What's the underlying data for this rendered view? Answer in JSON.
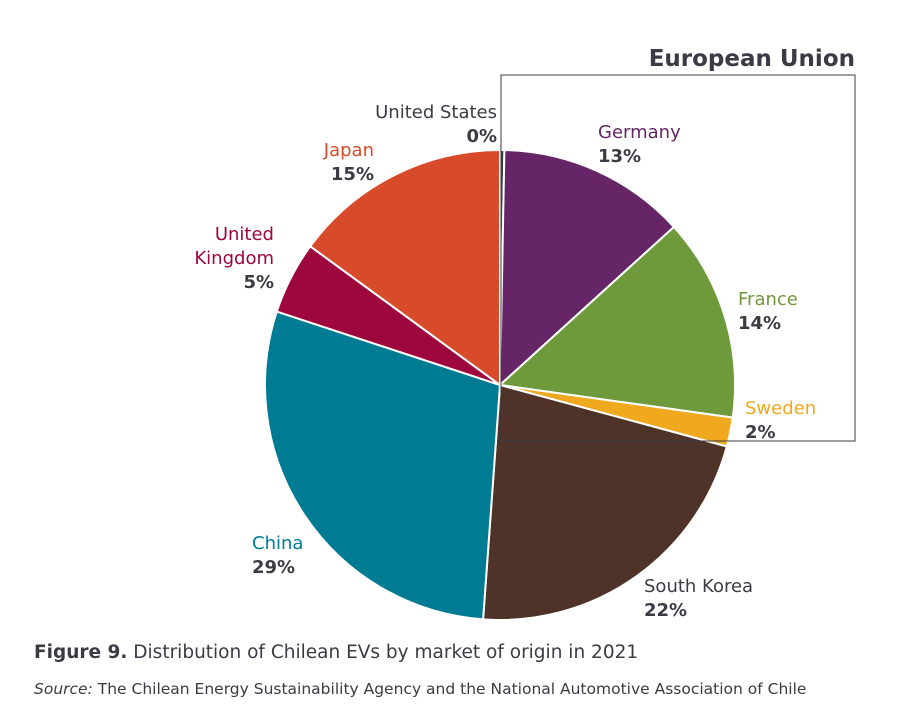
{
  "chart_data": {
    "type": "pie",
    "slices": [
      {
        "name": "United States",
        "label_lines": [
          "United States"
        ],
        "value": 0.3,
        "pct_label": "0%",
        "color": "#3b3b45",
        "label_color": "#3b3b45"
      },
      {
        "name": "Germany",
        "label_lines": [
          "Germany"
        ],
        "value": 13,
        "pct_label": "13%",
        "color": "#662566",
        "label_color": "#662566"
      },
      {
        "name": "France",
        "label_lines": [
          "France"
        ],
        "value": 14,
        "pct_label": "14%",
        "color": "#6e9a3c",
        "label_color": "#6e9a3c"
      },
      {
        "name": "Sweden",
        "label_lines": [
          "Sweden"
        ],
        "value": 2,
        "pct_label": "2%",
        "color": "#f0a91e",
        "label_color": "#f0a91e"
      },
      {
        "name": "South Korea",
        "label_lines": [
          "South Korea"
        ],
        "value": 22,
        "pct_label": "22%",
        "color": "#4f3328",
        "label_color": "#3b3b45"
      },
      {
        "name": "China",
        "label_lines": [
          "China"
        ],
        "value": 29,
        "pct_label": "29%",
        "color": "#007b94",
        "label_color": "#007b94"
      },
      {
        "name": "United Kingdom",
        "label_lines": [
          "United",
          "Kingdom"
        ],
        "value": 5,
        "pct_label": "5%",
        "color": "#9e063e",
        "label_color": "#9e063e"
      },
      {
        "name": "Japan",
        "label_lines": [
          "Japan"
        ],
        "value": 15,
        "pct_label": "15%",
        "color": "#d84b2a",
        "label_color": "#d84b2a"
      }
    ],
    "group_box": {
      "title": "European Union",
      "members": [
        "Germany",
        "France",
        "Sweden"
      ]
    }
  },
  "figure": {
    "number": "Figure 9.",
    "caption": "Distribution of Chilean EVs by market of origin in 2021",
    "source_label": "Source:",
    "source_text": "The Chilean Energy Sustainability Agency and the National Automotive Association of Chile"
  }
}
